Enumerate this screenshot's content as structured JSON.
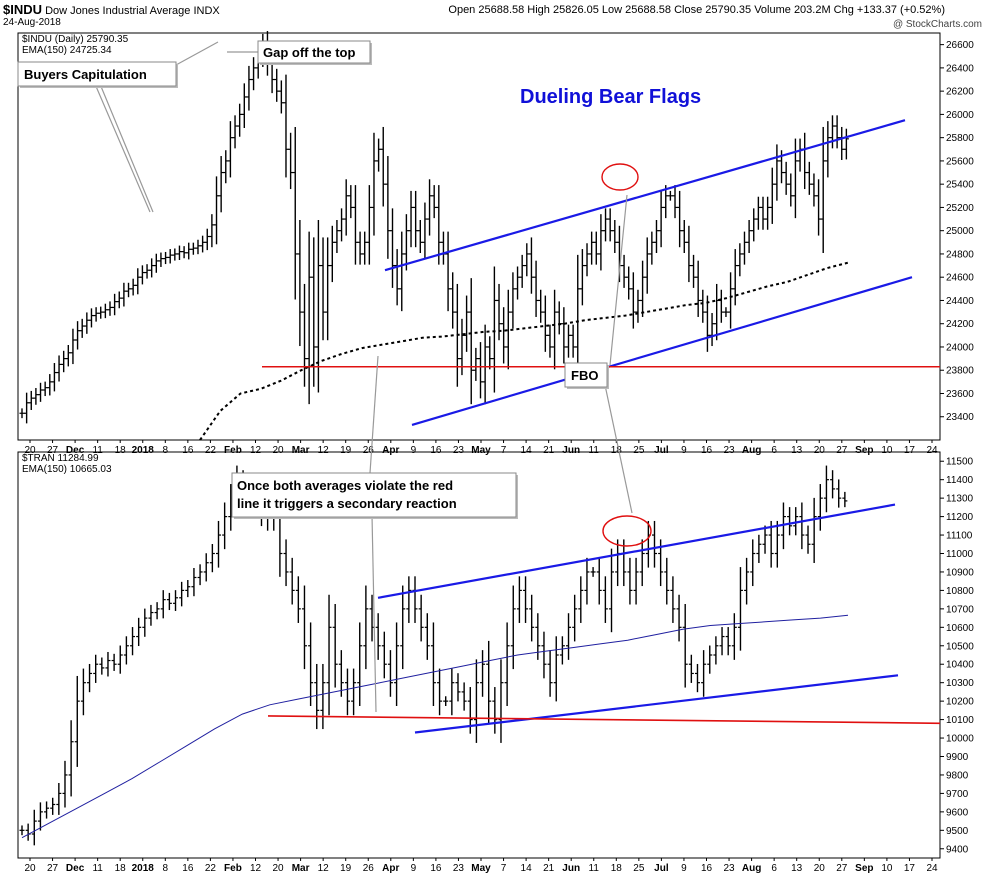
{
  "header": {
    "symbol": "$INDU",
    "name": "Dow Jones Industrial Average",
    "exchange": "INDX",
    "date": "24-Aug-2018",
    "ohlc": "Open 25688.58  High 25826.05  Low 25688.58  Close 25790.35  Volume 203.2M  Chg +133.37 (+0.52%)",
    "brand": "@ StockCharts.com"
  },
  "colors": {
    "flag": "#1a1ae6",
    "support": "#e01010",
    "ema_top": "#000000",
    "ema_bottom": "#2020a0",
    "title": "#1010d8"
  },
  "chart_data": [
    {
      "type": "bar",
      "name": "$INDU (Daily) 25790.35",
      "ema_label": "EMA(150) 24725.34",
      "y_ticks": [
        23400,
        23600,
        23800,
        24000,
        24200,
        24400,
        24600,
        24800,
        25000,
        25200,
        25400,
        25600,
        25800,
        26000,
        26200,
        26400,
        26600
      ],
      "ylim": [
        23200,
        26700
      ],
      "x_ticks": [
        "20",
        "27",
        "Dec",
        "11",
        "18",
        "2018",
        "8",
        "16",
        "22",
        "Feb",
        "12",
        "20",
        "Mar",
        "12",
        "19",
        "26",
        "Apr",
        "9",
        "16",
        "23",
        "May",
        "7",
        "14",
        "21",
        "Jun",
        "11",
        "18",
        "25",
        "Jul",
        "9",
        "16",
        "23",
        "Aug",
        "6",
        "13",
        "20",
        "27",
        "Sep",
        "10",
        "17",
        "24"
      ],
      "closes": [
        23430,
        23520,
        23560,
        23590,
        23630,
        23650,
        23700,
        23780,
        23850,
        23900,
        23950,
        24060,
        24140,
        24180,
        24230,
        24270,
        24290,
        24300,
        24320,
        24340,
        24390,
        24420,
        24480,
        24500,
        24530,
        24600,
        24640,
        24660,
        24700,
        24740,
        24760,
        24770,
        24790,
        24800,
        24820,
        24810,
        24840,
        24850,
        24870,
        24900,
        24950,
        25050,
        25300,
        25500,
        25600,
        25800,
        25900,
        26000,
        26150,
        26300,
        26400,
        26500,
        26600,
        26450,
        26300,
        26200,
        26100,
        25700,
        25500,
        24800,
        24300,
        23900,
        24600,
        24000,
        24700,
        24300,
        24700,
        24900,
        25000,
        25100,
        25300,
        25200,
        24900,
        24800,
        24900,
        25200,
        25600,
        25700,
        25400,
        25000,
        24700,
        24500,
        24800,
        25000,
        25200,
        25000,
        24900,
        25100,
        25300,
        25200,
        24900,
        24800,
        24500,
        24300,
        23900,
        24100,
        24300,
        23800,
        23900,
        23700,
        24000,
        23900,
        24400,
        24200,
        24000,
        24300,
        24500,
        24600,
        24700,
        24800,
        24600,
        24400,
        24300,
        24100,
        24000,
        24300,
        24200,
        24000,
        24100,
        24000,
        24500,
        24700,
        24800,
        24900,
        24800,
        25000,
        25100,
        25000,
        24900,
        24700,
        24600,
        24500,
        24300,
        24400,
        24600,
        24800,
        24900,
        25000,
        25200,
        25300,
        25300,
        25200,
        25000,
        24900,
        24700,
        24600,
        24400,
        24300,
        24100,
        24200,
        24400,
        24300,
        24300,
        24500,
        24700,
        24800,
        24900,
        25000,
        25100,
        25200,
        25100,
        25200,
        25400,
        25600,
        25500,
        25400,
        25300,
        25600,
        25700,
        25500,
        25400,
        25300,
        25100,
        25600,
        25800,
        25900,
        25800,
        25700,
        25790
      ],
      "ema": [
        23200,
        23450,
        23600,
        23640,
        23710,
        23800,
        23880,
        23940,
        23990,
        24020,
        24050,
        24080,
        24090,
        24110,
        24130,
        24140,
        24160,
        24180,
        24200,
        24230,
        24250,
        24270,
        24300,
        24330,
        24360,
        24380,
        24420,
        24470,
        24520,
        24560,
        24620,
        24680,
        24725
      ],
      "annotations": [
        "Buyers Capitulation",
        "Gap off the top",
        "FBO"
      ],
      "title": "Dueling Bear Flags"
    },
    {
      "type": "bar",
      "name": "$TRAN 11284.99",
      "ema_label": "EMA(150) 10665.03",
      "y_ticks": [
        9400,
        9500,
        9600,
        9700,
        9800,
        9900,
        10000,
        10100,
        10200,
        10300,
        10400,
        10500,
        10600,
        10700,
        10800,
        10900,
        11000,
        11100,
        11200,
        11300,
        11400,
        11500
      ],
      "ylim": [
        9350,
        11550
      ],
      "x_ticks": [
        "20",
        "27",
        "Dec",
        "11",
        "18",
        "2018",
        "8",
        "16",
        "22",
        "Feb",
        "12",
        "20",
        "Mar",
        "12",
        "19",
        "26",
        "Apr",
        "9",
        "16",
        "23",
        "May",
        "7",
        "14",
        "21",
        "Jun",
        "11",
        "18",
        "25",
        "Jul",
        "9",
        "16",
        "23",
        "Aug",
        "6",
        "13",
        "20",
        "27",
        "Sep",
        "10",
        "17",
        "24"
      ],
      "closes": [
        9500,
        9480,
        9550,
        9600,
        9620,
        9640,
        9700,
        9800,
        9980,
        10200,
        10300,
        10350,
        10400,
        10380,
        10420,
        10400,
        10450,
        10500,
        10550,
        10600,
        10650,
        10680,
        10700,
        10750,
        10730,
        10760,
        10800,
        10820,
        10870,
        10900,
        10950,
        11000,
        11100,
        11200,
        11300,
        11400,
        11350,
        11300,
        11250,
        11200,
        11300,
        11200,
        11000,
        10900,
        10800,
        10700,
        10500,
        10300,
        10150,
        10300,
        10600,
        10400,
        10300,
        10200,
        10300,
        10500,
        10700,
        10600,
        10500,
        10400,
        10300,
        10500,
        10700,
        10800,
        10700,
        10600,
        10500,
        10300,
        10200,
        10200,
        10300,
        10250,
        10200,
        10100,
        10300,
        10400,
        10200,
        10100,
        10300,
        10500,
        10700,
        10800,
        10700,
        10600,
        10500,
        10400,
        10300,
        10450,
        10500,
        10600,
        10700,
        10800,
        10900,
        10900,
        10800,
        10700,
        10900,
        11000,
        10900,
        10800,
        10900,
        11000,
        11100,
        11000,
        10900,
        10800,
        10700,
        10600,
        10400,
        10350,
        10300,
        10400,
        10450,
        10500,
        10550,
        10500,
        10600,
        10800,
        10900,
        11000,
        11050,
        11100,
        11000,
        11100,
        11200,
        11150,
        11200,
        11100,
        11050,
        11200,
        11300,
        11400,
        11350,
        11300,
        11285
      ],
      "ema": [
        9460,
        9540,
        9620,
        9700,
        9780,
        9870,
        9960,
        10050,
        10130,
        10180,
        10210,
        10240,
        10270,
        10300,
        10330,
        10360,
        10390,
        10420,
        10450,
        10470,
        10490,
        10510,
        10530,
        10560,
        10590,
        10610,
        10620,
        10630,
        10640,
        10650,
        10665
      ],
      "annotations": [
        "Once both averages violate the red line it triggers a secondary reaction"
      ]
    }
  ]
}
